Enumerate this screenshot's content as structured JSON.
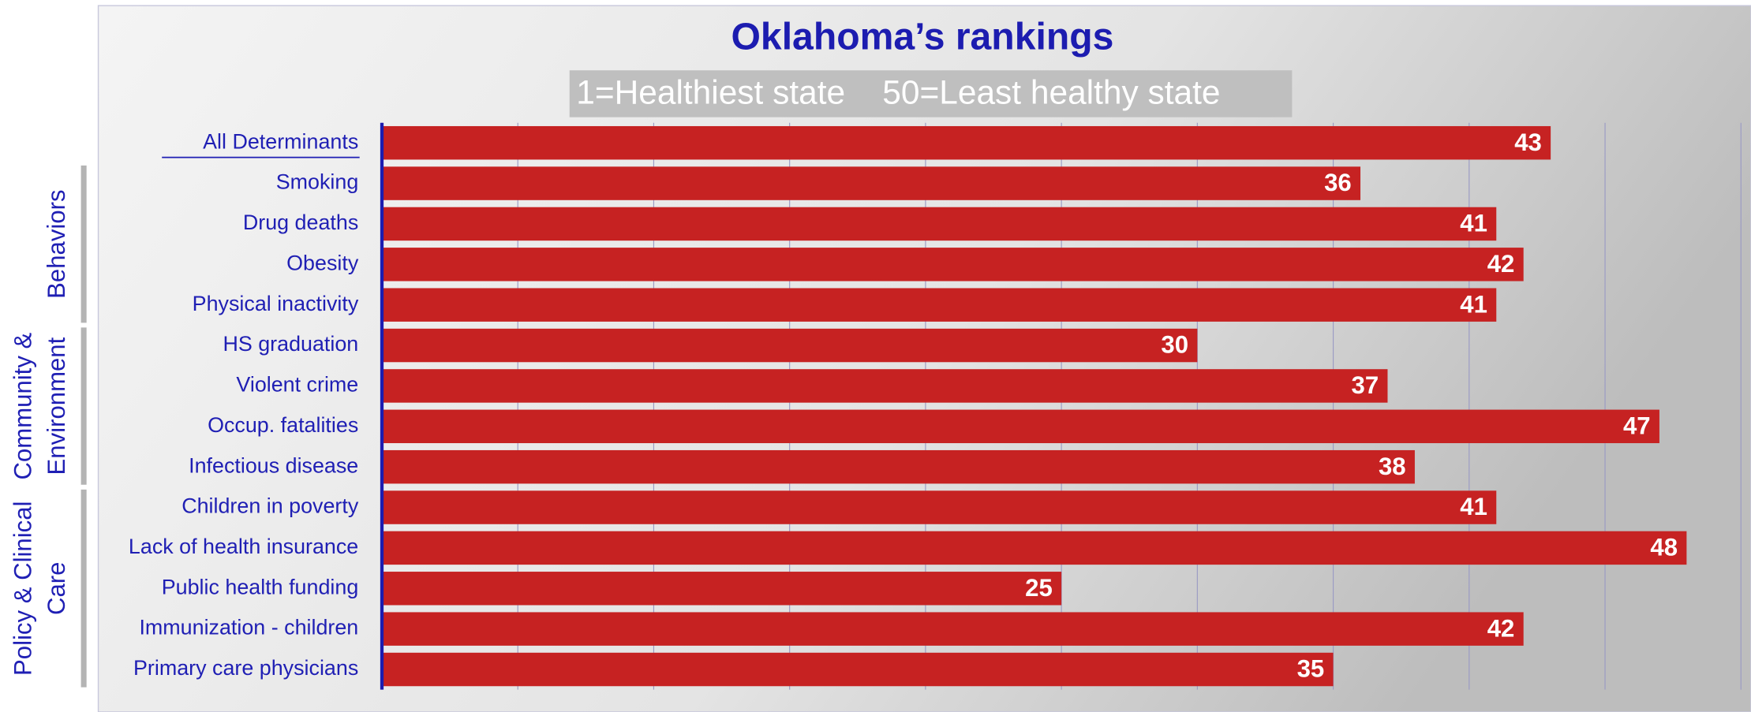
{
  "chart_data": {
    "type": "bar",
    "orientation": "horizontal",
    "title": "Oklahoma’s rankings",
    "subtitle": "1=Healthiest state    50=Least healthy state",
    "categories": [
      "All Determinants",
      "Smoking",
      "Drug deaths",
      "Obesity",
      "Physical inactivity",
      "HS graduation",
      "Violent crime",
      "Occup. fatalities",
      "Infectious disease",
      "Children in poverty",
      "Lack of health insurance",
      "Public health funding",
      "Immunization - children",
      "Primary care physicians"
    ],
    "values": [
      43,
      36,
      41,
      42,
      41,
      30,
      37,
      47,
      38,
      41,
      48,
      25,
      42,
      35
    ],
    "color": "#c62222",
    "xlim": [
      0,
      50
    ],
    "xticks": [
      0,
      5,
      10,
      15,
      20,
      25,
      30,
      35,
      40,
      45,
      50
    ],
    "grid": true,
    "groups": [
      [
        "Behaviors"
      ],
      [
        "Community &",
        "Environment"
      ],
      [
        "Policy & Clinical",
        "Care"
      ]
    ]
  }
}
